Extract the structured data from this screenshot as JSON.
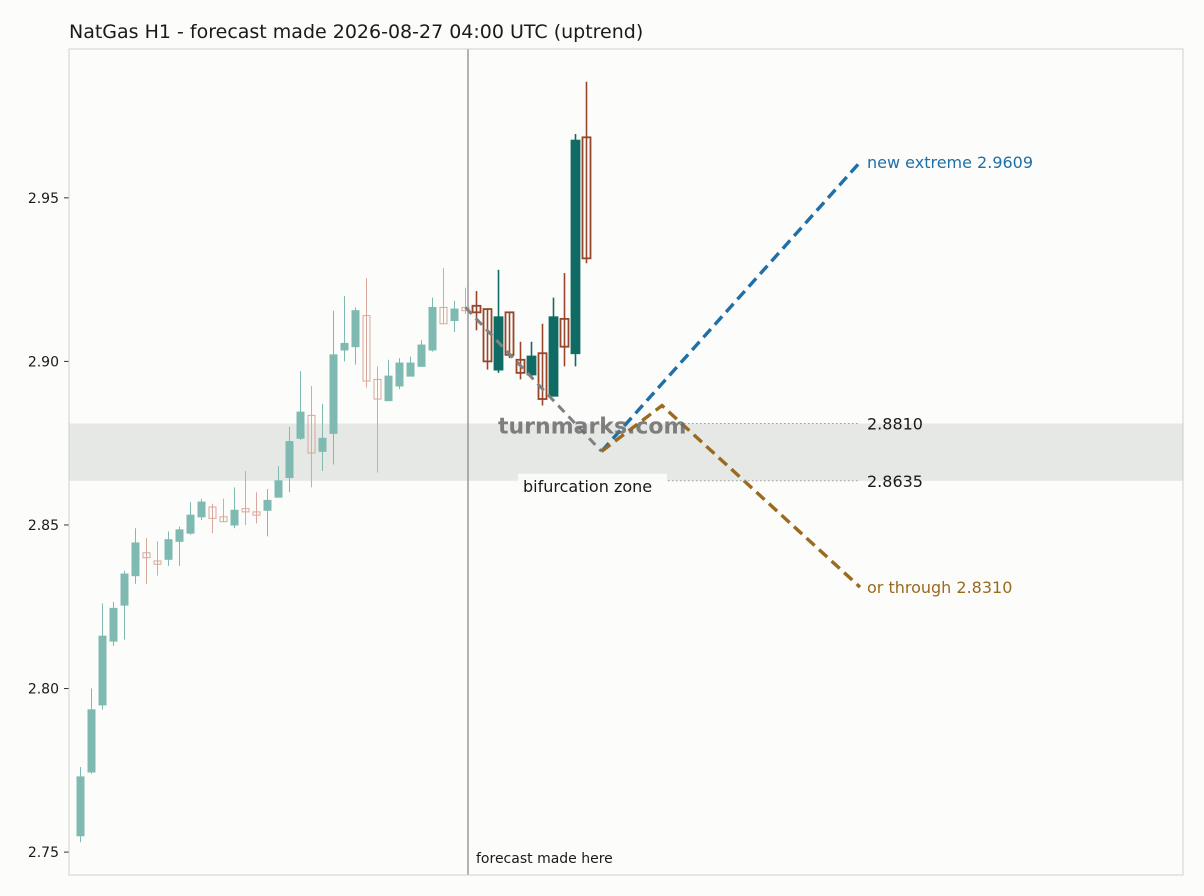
{
  "chart_data": {
    "type": "candlestick",
    "title": "NatGas H1 - forecast made 2026-08-27 04:00 UTC (uptrend)",
    "xlabel": "",
    "ylabel": "",
    "ylim": [
      2.743,
      2.9955
    ],
    "y_ticks": [
      "2.75",
      "2.80",
      "2.85",
      "2.90",
      "2.95"
    ],
    "grid": false,
    "colors": {
      "hist_up": "#7fbab2",
      "hist_down": "#d9a79b",
      "post_up": "#0f6b63",
      "post_down": "#97452b",
      "forecast_path": "#808080",
      "up_scenario": "#1f6fa8",
      "down_scenario": "#9a6a1f",
      "zone": "#e3e6e3"
    },
    "candles_before_forecast": [
      {
        "o": 2.755,
        "h": 2.776,
        "l": 2.753,
        "c": 2.773
      },
      {
        "o": 2.7745,
        "h": 2.8,
        "l": 2.774,
        "c": 2.7935
      },
      {
        "o": 2.795,
        "h": 2.826,
        "l": 2.7935,
        "c": 2.816
      },
      {
        "o": 2.8145,
        "h": 2.8265,
        "l": 2.813,
        "c": 2.8245
      },
      {
        "o": 2.8255,
        "h": 2.836,
        "l": 2.815,
        "c": 2.835
      },
      {
        "o": 2.8345,
        "h": 2.849,
        "l": 2.832,
        "c": 2.8445
      },
      {
        "o": 2.8415,
        "h": 2.846,
        "l": 2.832,
        "c": 2.84
      },
      {
        "o": 2.839,
        "h": 2.845,
        "l": 2.8345,
        "c": 2.838
      },
      {
        "o": 2.8395,
        "h": 2.848,
        "l": 2.8375,
        "c": 2.8455
      },
      {
        "o": 2.845,
        "h": 2.8495,
        "l": 2.8375,
        "c": 2.8485
      },
      {
        "o": 2.8475,
        "h": 2.857,
        "l": 2.847,
        "c": 2.853
      },
      {
        "o": 2.8525,
        "h": 2.858,
        "l": 2.8515,
        "c": 2.857
      },
      {
        "o": 2.8555,
        "h": 2.8565,
        "l": 2.8475,
        "c": 2.852
      },
      {
        "o": 2.8525,
        "h": 2.858,
        "l": 2.851,
        "c": 2.851
      },
      {
        "o": 2.85,
        "h": 2.8615,
        "l": 2.849,
        "c": 2.8545
      },
      {
        "o": 2.855,
        "h": 2.8665,
        "l": 2.85,
        "c": 2.854
      },
      {
        "o": 2.854,
        "h": 2.86,
        "l": 2.8505,
        "c": 2.853
      },
      {
        "o": 2.8545,
        "h": 2.861,
        "l": 2.8465,
        "c": 2.8575
      },
      {
        "o": 2.8585,
        "h": 2.868,
        "l": 2.8585,
        "c": 2.8635
      },
      {
        "o": 2.8645,
        "h": 2.88,
        "l": 2.86,
        "c": 2.8755
      },
      {
        "o": 2.8765,
        "h": 2.897,
        "l": 2.876,
        "c": 2.8845
      },
      {
        "o": 2.8835,
        "h": 2.8925,
        "l": 2.8615,
        "c": 2.872
      },
      {
        "o": 2.8725,
        "h": 2.887,
        "l": 2.8665,
        "c": 2.8765
      },
      {
        "o": 2.878,
        "h": 2.9155,
        "l": 2.8685,
        "c": 2.902
      },
      {
        "o": 2.9035,
        "h": 2.92,
        "l": 2.9,
        "c": 2.9055
      },
      {
        "o": 2.9045,
        "h": 2.9165,
        "l": 2.899,
        "c": 2.9155
      },
      {
        "o": 2.914,
        "h": 2.9255,
        "l": 2.892,
        "c": 2.894
      },
      {
        "o": 2.8945,
        "h": 2.8985,
        "l": 2.866,
        "c": 2.8885
      },
      {
        "o": 2.888,
        "h": 2.9005,
        "l": 2.888,
        "c": 2.8955
      },
      {
        "o": 2.8925,
        "h": 2.901,
        "l": 2.8915,
        "c": 2.8995
      },
      {
        "o": 2.8955,
        "h": 2.9015,
        "l": 2.8955,
        "c": 2.8995
      },
      {
        "o": 2.8985,
        "h": 2.9065,
        "l": 2.8985,
        "c": 2.905
      },
      {
        "o": 2.9035,
        "h": 2.9195,
        "l": 2.903,
        "c": 2.9165
      },
      {
        "o": 2.9165,
        "h": 2.9285,
        "l": 2.9115,
        "c": 2.9115
      },
      {
        "o": 2.9125,
        "h": 2.9185,
        "l": 2.909,
        "c": 2.916
      },
      {
        "o": 2.9165,
        "h": 2.9225,
        "l": 2.9145,
        "c": 2.9155
      }
    ],
    "candles_after_forecast": [
      {
        "o": 2.917,
        "h": 2.9215,
        "l": 2.9095,
        "c": 2.915
      },
      {
        "o": 2.916,
        "h": 2.916,
        "l": 2.8975,
        "c": 2.9
      },
      {
        "o": 2.8975,
        "h": 2.928,
        "l": 2.8965,
        "c": 2.9135
      },
      {
        "o": 2.915,
        "h": 2.915,
        "l": 2.901,
        "c": 2.902
      },
      {
        "o": 2.9005,
        "h": 2.906,
        "l": 2.8945,
        "c": 2.8965
      },
      {
        "o": 2.896,
        "h": 2.906,
        "l": 2.8955,
        "c": 2.9015
      },
      {
        "o": 2.9025,
        "h": 2.9115,
        "l": 2.8865,
        "c": 2.8885
      },
      {
        "o": 2.8895,
        "h": 2.9195,
        "l": 2.8895,
        "c": 2.9135
      },
      {
        "o": 2.913,
        "h": 2.927,
        "l": 2.8985,
        "c": 2.9045
      },
      {
        "o": 2.9025,
        "h": 2.9695,
        "l": 2.8985,
        "c": 2.9675
      },
      {
        "o": 2.9685,
        "h": 2.9855,
        "l": 2.93,
        "c": 2.9315
      }
    ],
    "forecast_path": [
      [
        0,
        2.9165
      ],
      [
        12,
        2.8725
      ]
    ],
    "up_scenario": {
      "from": [
        12,
        2.8725
      ],
      "to": [
        35.5,
        2.9609
      ]
    },
    "down_scenario": {
      "points": [
        [
          12,
          2.8725
        ],
        [
          17.5,
          2.8865
        ],
        [
          35.5,
          2.831
        ]
      ]
    },
    "bifurcation_zone": {
      "low": 2.8635,
      "high": 2.881
    },
    "annotations": {
      "forecast_marker": "forecast made here",
      "zone_label": "bifurcation zone",
      "zone_high": "2.8810",
      "zone_low": "2.8635",
      "up_label": "new extreme 2.9609",
      "down_label": "or through 2.8310",
      "watermark": "turnmarks.com"
    }
  }
}
